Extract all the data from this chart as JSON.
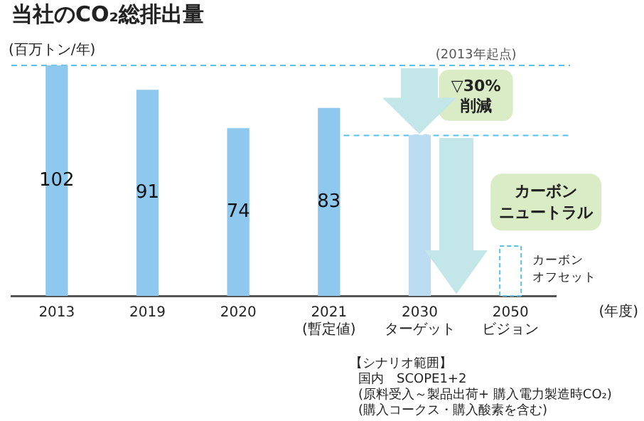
{
  "chart_data": {
    "type": "bar",
    "title": "当社のCO₂総排出量",
    "ylabel": "(百万トン/年)",
    "xlabel": "(年度)",
    "categories": [
      "2013",
      "2019",
      "2020",
      "2021\n(暫定値)",
      "2030\nターゲット",
      "2050\nビジョン"
    ],
    "values": [
      102,
      91,
      74,
      83,
      71,
      22
    ],
    "colors": [
      "#8ec8ee",
      "#8ec8ee",
      "#8ec8ee",
      "#8ec8ee",
      "#bcdcf3",
      "#ffffff"
    ],
    "value_labels": [
      "102",
      "91",
      "74",
      "83",
      null,
      null
    ],
    "ref_lines": [
      {
        "axis": "y",
        "value": 102,
        "color": "#5bc0e8",
        "line_style": "dashed"
      },
      {
        "axis": "y",
        "value": 71,
        "color": "#5bc0e8",
        "line_style": "dashed"
      }
    ],
    "annotations": [
      "(2013年起点)",
      "▽30%\n削減",
      "カーボンニュートラル",
      "カーボンオフセット",
      "【シナリオ範囲】",
      "国内　SCOPE1+2",
      "(原料受入～製品出荷+ 購入電力製造時CO₂)",
      "(購入コークス・購入酸素を含む)"
    ],
    "grid": false,
    "legend": false
  }
}
